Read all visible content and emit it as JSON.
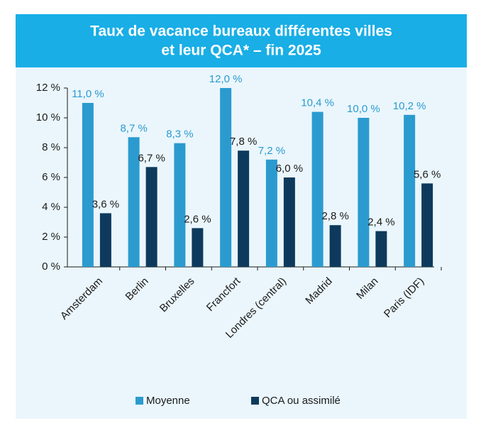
{
  "chart_data": {
    "type": "bar",
    "title": [
      "Taux de vacance bureaux différentes villes",
      "et leur QCA* – fin 2025"
    ],
    "categories": [
      "Amsterdam",
      "Berlin",
      "Bruxelles",
      "Francfort",
      "Londres (central)",
      "Madrid",
      "Milan",
      "Paris (IDF)"
    ],
    "series": [
      {
        "name": "Moyenne",
        "color": "#2b9bcf",
        "values": [
          11.0,
          8.7,
          8.3,
          12.0,
          7.2,
          10.4,
          10.0,
          10.2
        ],
        "value_labels": [
          "11,0 %",
          "8,7 %",
          "8,3 %",
          "12,0 %",
          "7,2 %",
          "10,4 %",
          "10,0 %",
          "10,2 %"
        ]
      },
      {
        "name": "QCA ou assimilé",
        "color": "#0d3a5c",
        "values": [
          3.6,
          6.7,
          2.6,
          7.8,
          6.0,
          2.8,
          2.4,
          5.6
        ],
        "value_labels": [
          "3,6 %",
          "6,7 %",
          "2,6 %",
          "7,8 %",
          "6,0 %",
          "2,8 %",
          "2,4 %",
          "5,6 %"
        ]
      }
    ],
    "ylim": [
      0,
      12
    ],
    "yticks": [
      {
        "value": 0,
        "label": "0 %"
      },
      {
        "value": 2,
        "label": "2 %"
      },
      {
        "value": 4,
        "label": "4 %"
      },
      {
        "value": 6,
        "label": "6 %"
      },
      {
        "value": 8,
        "label": "8 %"
      },
      {
        "value": 10,
        "label": "10 %"
      },
      {
        "value": 12,
        "label": "12 %"
      }
    ]
  }
}
